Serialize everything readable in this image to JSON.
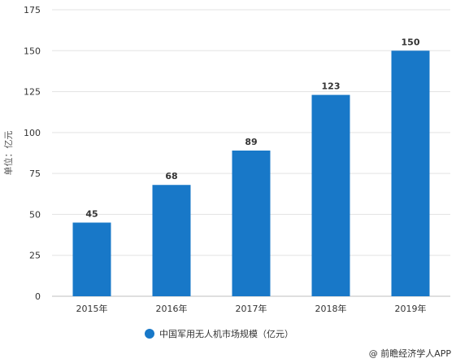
{
  "chart_data": {
    "type": "bar",
    "categories": [
      "2015年",
      "2016年",
      "2017年",
      "2018年",
      "2019年"
    ],
    "series": [
      {
        "name": "中国军用无人机市场规模（亿元）",
        "values": [
          45,
          68,
          89,
          123,
          150
        ],
        "color": "#1878c8"
      }
    ],
    "ylabel": "单位：亿元",
    "ylim": [
      0,
      175
    ],
    "yticks": [
      0,
      25,
      50,
      75,
      100,
      125,
      150,
      175
    ],
    "grid": true,
    "legend": "bottom-center"
  },
  "footer": {
    "credit": "@ 前瞻经济学人APP",
    "credit_icon": "at-sign-icon"
  }
}
